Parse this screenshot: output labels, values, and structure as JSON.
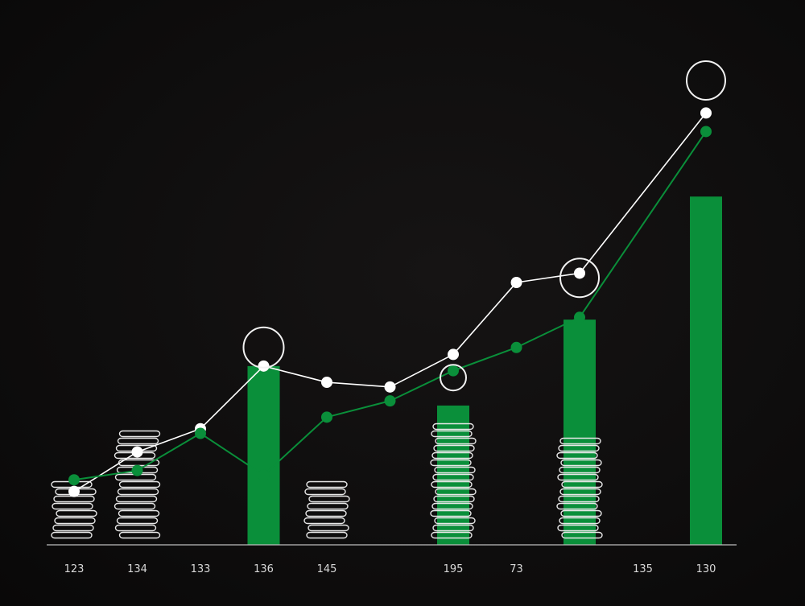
{
  "chart_data": {
    "type": "bar",
    "categories": [
      "123",
      "134",
      "133",
      "136",
      "145",
      "",
      "195",
      "73",
      "",
      "135",
      "130"
    ],
    "bars": {
      "color": "#0a8f3a",
      "values": [
        0,
        0,
        0,
        77,
        0,
        0,
        60,
        0,
        97,
        0,
        150
      ]
    },
    "coin_stacks": {
      "color": "#e8e8e8",
      "coins": [
        8,
        15,
        0,
        0,
        8,
        0,
        16,
        0,
        14,
        0,
        0
      ]
    },
    "series": [
      {
        "color": "#ffffff",
        "points": [
          [
            0,
            23
          ],
          [
            1,
            40
          ],
          [
            2,
            50
          ],
          [
            3,
            77
          ],
          [
            4,
            70
          ],
          [
            5,
            68
          ],
          [
            6,
            82
          ],
          [
            7,
            113
          ],
          [
            8,
            117
          ],
          [
            10,
            186
          ]
        ]
      },
      {
        "color": "#0a8f3a",
        "points": [
          [
            0,
            28
          ],
          [
            1,
            32
          ],
          [
            2,
            48
          ],
          [
            3,
            30
          ],
          [
            4,
            55
          ],
          [
            5,
            62
          ],
          [
            6,
            75
          ],
          [
            7,
            85
          ],
          [
            8,
            98
          ],
          [
            10,
            178
          ]
        ]
      }
    ],
    "ylim": [
      0,
      200
    ],
    "grid": false,
    "legend": "none"
  }
}
